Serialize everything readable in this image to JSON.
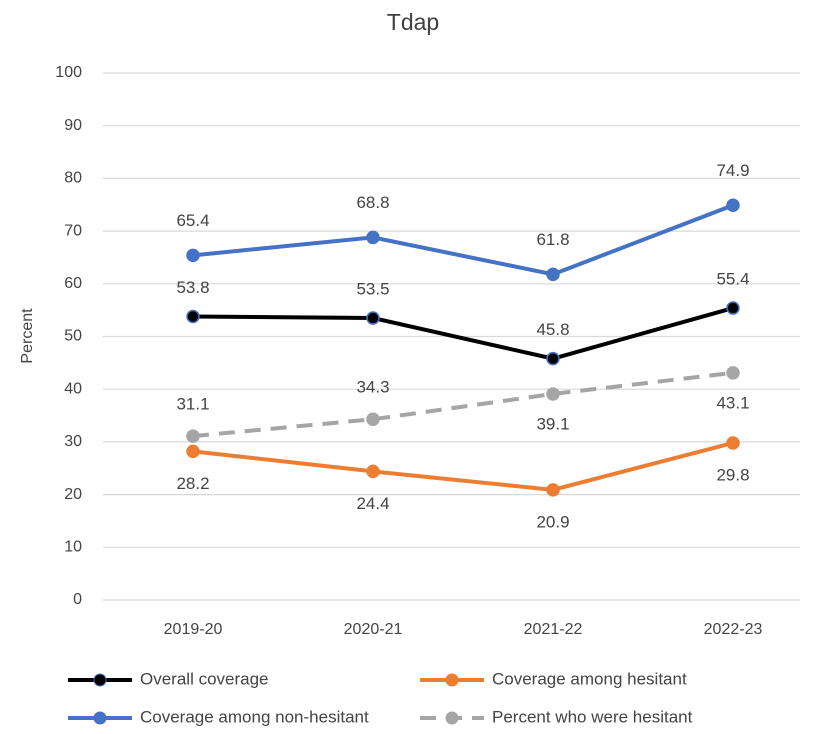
{
  "chart_data": {
    "type": "line",
    "title": "Tdap",
    "y_label": "Percent",
    "categories": [
      "2019-20",
      "2020-21",
      "2021-22",
      "2022-23"
    ],
    "series": [
      {
        "name": "Overall coverage",
        "color": "#000000",
        "line_style": "solid",
        "values": [
          53.8,
          53.5,
          45.8,
          55.4
        ]
      },
      {
        "name": "Coverage among hesitant",
        "color": "#ed7d31",
        "line_style": "solid",
        "values": [
          28.2,
          24.4,
          20.9,
          29.8
        ]
      },
      {
        "name": "Coverage among non-hesitant",
        "color": "#4472c4",
        "line_style": "solid",
        "values": [
          65.4,
          68.8,
          61.8,
          74.9
        ]
      },
      {
        "name": "Percent who were hesitant",
        "color": "#a5a5a5",
        "line_style": "dashed",
        "values": [
          31.1,
          34.3,
          39.1,
          43.1
        ]
      }
    ],
    "ylim": [
      0,
      100
    ],
    "yticks": [
      0,
      10,
      20,
      30,
      40,
      50,
      60,
      70,
      80,
      90,
      100
    ],
    "grid": true,
    "legend": "bottom"
  }
}
